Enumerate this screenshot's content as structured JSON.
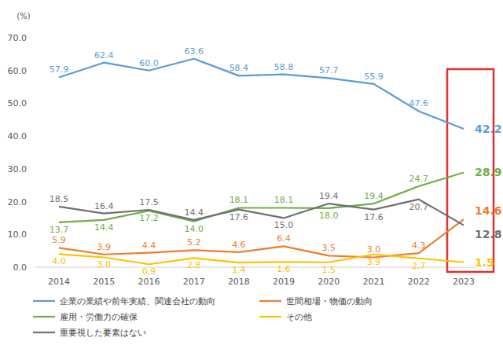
{
  "chart_data": {
    "type": "line",
    "y_label": "(%)",
    "categories": [
      "2014",
      "2015",
      "2016",
      "2017",
      "2018",
      "2019",
      "2020",
      "2021",
      "2022",
      "2023"
    ],
    "ylim": [
      0,
      70
    ],
    "yticks": [
      {
        "value": 0,
        "label": "0.0"
      },
      {
        "value": 10,
        "label": "10.0"
      },
      {
        "value": 20,
        "label": "20.0"
      },
      {
        "value": 30,
        "label": "30.0"
      },
      {
        "value": 40,
        "label": "40.0"
      },
      {
        "value": 50,
        "label": "50.0"
      },
      {
        "value": 60,
        "label": "60.0"
      },
      {
        "value": 70,
        "label": "70.0"
      }
    ],
    "grid": false,
    "data_labels": true,
    "series": [
      {
        "name": "企業の業績や前年実績、関連会社の動向",
        "color": "#5b9bd5",
        "values": [
          57.9,
          62.4,
          60.0,
          63.6,
          58.4,
          58.8,
          57.7,
          55.9,
          47.6,
          42.2
        ],
        "value_labels": [
          "57.9",
          "62.4",
          "60.0",
          "63.6",
          "58.4",
          "58.8",
          "57.7",
          "55.9",
          "47.6",
          "42.2"
        ]
      },
      {
        "name": "世間相場・物価の動向",
        "color": "#ed7d31",
        "values": [
          5.9,
          3.9,
          4.4,
          5.2,
          4.6,
          6.4,
          3.5,
          3.0,
          4.3,
          14.6
        ],
        "value_labels": [
          "5.9",
          "3.9",
          "4.4",
          "5.2",
          "4.6",
          "6.4",
          "3.5",
          "3.0",
          "4.3",
          "14.6"
        ]
      },
      {
        "name": "雇用・労働力の確保",
        "color": "#70ad47",
        "values": [
          13.7,
          14.4,
          17.2,
          14.0,
          18.1,
          18.1,
          18.0,
          19.4,
          24.7,
          28.9
        ],
        "value_labels": [
          "13.7",
          "14.4",
          "17.2",
          "14.0",
          "18.1",
          "18.1",
          "18.0",
          "19.4",
          "24.7",
          "28.9"
        ]
      },
      {
        "name": "その他",
        "color": "#ffc000",
        "values": [
          4.0,
          3.0,
          0.9,
          2.8,
          1.4,
          1.6,
          1.5,
          3.9,
          2.7,
          1.5
        ],
        "value_labels": [
          "4.0",
          "3.0",
          "0.9",
          "2.8",
          "1.4",
          "1.6",
          "1.5",
          "3.9",
          "2.7",
          "1.5"
        ]
      },
      {
        "name": "重要視した要素はない",
        "color": "#707070",
        "values": [
          18.5,
          16.4,
          17.5,
          14.4,
          17.6,
          15.0,
          19.4,
          17.6,
          20.7,
          12.8
        ],
        "value_labels": [
          "18.5",
          "16.4",
          "17.5",
          "14.4",
          "17.6",
          "15.0",
          "19.4",
          "17.6",
          "20.7",
          "12.8"
        ]
      }
    ]
  }
}
